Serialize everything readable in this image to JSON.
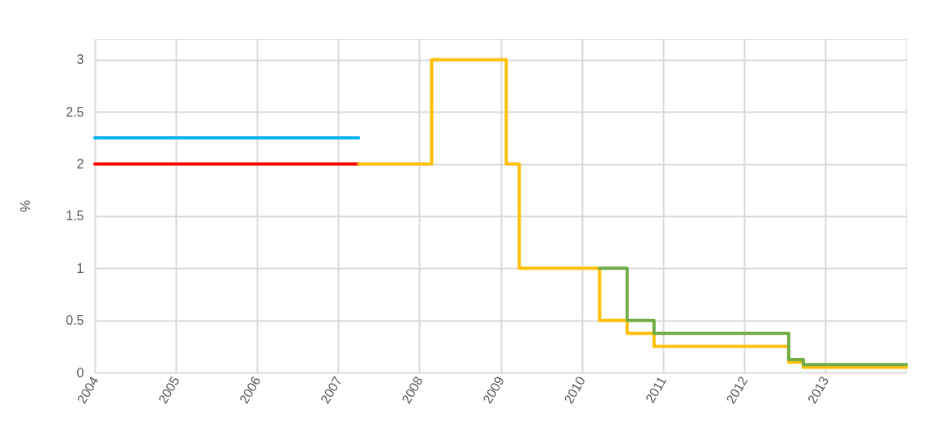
{
  "chart_data": {
    "type": "step",
    "ylabel": "%",
    "xlim": [
      2004,
      2014
    ],
    "xticks": [
      2004,
      2005,
      2006,
      2007,
      2008,
      2009,
      2010,
      2011,
      2012,
      2013
    ],
    "ylim": [
      0,
      3.2
    ],
    "yticks": [
      0,
      0.5,
      1,
      1.5,
      2,
      2.5,
      3
    ],
    "grid": true,
    "line_style": "solid",
    "marker": "none",
    "series": [
      {
        "color": "#00b0f0",
        "x": [
          2004,
          2007.25
        ],
        "values": [
          2.25,
          2.25
        ]
      },
      {
        "color": "#ff0000",
        "x": [
          2004,
          2007.25
        ],
        "values": [
          2,
          2
        ]
      },
      {
        "color": "#ffc000",
        "x": [
          2007.25,
          2008.15,
          2009.07,
          2009.23,
          2010.22,
          2010.56,
          2010.89,
          2012.55,
          2012.73,
          2014
        ],
        "values": [
          2,
          3,
          2,
          1,
          0.5,
          0.375,
          0.25,
          0.1,
          0.05,
          0.05
        ]
      },
      {
        "color": "#70ad47",
        "x": [
          2010.22,
          2010.56,
          2010.89,
          2012.55,
          2012.73,
          2014
        ],
        "values": [
          1,
          0.5,
          0.375,
          0.125,
          0.075,
          0.075
        ]
      }
    ]
  }
}
